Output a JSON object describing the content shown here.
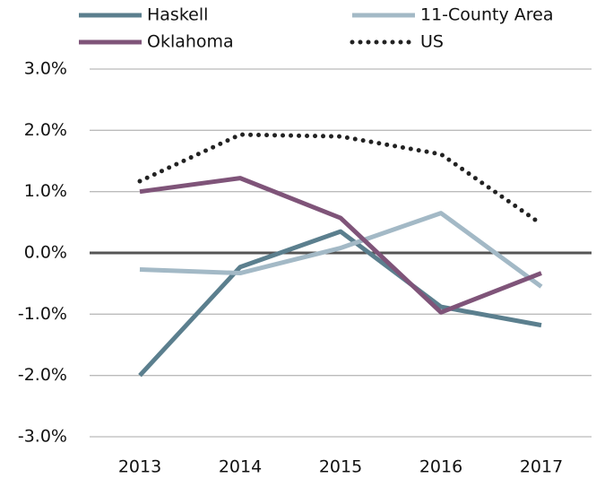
{
  "chart_data": {
    "type": "line",
    "categories": [
      "2013",
      "2014",
      "2015",
      "2016",
      "2017"
    ],
    "series": [
      {
        "name": "Haskell",
        "color": "#5b7f8e",
        "style": "solid",
        "values": [
          -2.0,
          -0.23,
          0.35,
          -0.88,
          -1.18
        ]
      },
      {
        "name": "11-County Area",
        "color": "#a3b9c6",
        "style": "solid",
        "values": [
          -0.27,
          -0.33,
          0.08,
          0.65,
          -0.55
        ]
      },
      {
        "name": "Oklahoma",
        "color": "#7f5479",
        "style": "solid",
        "values": [
          1.0,
          1.22,
          0.57,
          -0.97,
          -0.33
        ]
      },
      {
        "name": "US",
        "color": "#222222",
        "style": "dotted",
        "values": [
          1.17,
          1.93,
          1.9,
          1.61,
          0.47
        ]
      }
    ],
    "ylim": [
      -3,
      3
    ],
    "yticks": [
      {
        "value": -3,
        "label": "-3.0%"
      },
      {
        "value": -2,
        "label": "-2.0%"
      },
      {
        "value": -1,
        "label": "-1.0%"
      },
      {
        "value": 0,
        "label": "0.0%"
      },
      {
        "value": 1,
        "label": "1.0%"
      },
      {
        "value": 2,
        "label": "2.0%"
      },
      {
        "value": 3,
        "label": "3.0%"
      }
    ],
    "grid": true,
    "legend": "top"
  }
}
